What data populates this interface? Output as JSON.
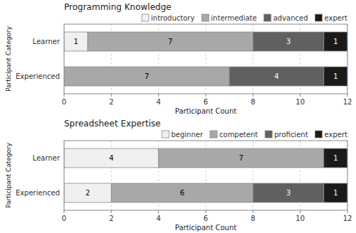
{
  "chart_data": [
    {
      "type": "bar",
      "orientation": "horizontal",
      "stacked": true,
      "data_labels": true,
      "title": "Programming Knowledge",
      "xlabel": "Participant Count",
      "ylabel": "Participant Category",
      "categories": [
        "Learner",
        "Experienced"
      ],
      "series": [
        {
          "name": "introductory",
          "color": "#f0f0f0",
          "values": [
            1,
            0
          ]
        },
        {
          "name": "intermediate",
          "color": "#a8a8a8",
          "values": [
            7,
            7
          ]
        },
        {
          "name": "advanced",
          "color": "#606060",
          "values": [
            3,
            4
          ]
        },
        {
          "name": "expert",
          "color": "#1a1a1a",
          "values": [
            1,
            1
          ]
        }
      ],
      "xlim": [
        0,
        12
      ],
      "xticks": [
        0,
        2,
        4,
        6,
        8,
        10,
        12
      ],
      "grid": true,
      "legend": "upper right"
    },
    {
      "type": "bar",
      "orientation": "horizontal",
      "stacked": true,
      "data_labels": true,
      "title": "Spreadsheet Expertise",
      "xlabel": "Participant Count",
      "ylabel": "Participant Category",
      "categories": [
        "Learner",
        "Experienced"
      ],
      "series": [
        {
          "name": "beginner",
          "color": "#f0f0f0",
          "values": [
            4,
            2
          ]
        },
        {
          "name": "competent",
          "color": "#a8a8a8",
          "values": [
            7,
            6
          ]
        },
        {
          "name": "proficient",
          "color": "#606060",
          "values": [
            0,
            3
          ]
        },
        {
          "name": "expert",
          "color": "#1a1a1a",
          "values": [
            1,
            1
          ]
        }
      ],
      "xlim": [
        0,
        12
      ],
      "xticks": [
        0,
        2,
        4,
        6,
        8,
        10,
        12
      ],
      "grid": true,
      "legend": "upper right"
    }
  ]
}
